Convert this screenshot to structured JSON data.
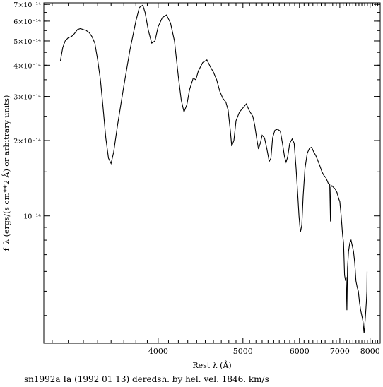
{
  "chart_data": {
    "type": "line",
    "xlabel": "Rest λ (Å)",
    "ylabel": "f_λ (ergs/(s cm**2 Å) or arbitrary units)",
    "caption": "sn1992a Ia (1992 01 13) deredsh. by hel. vel.  1846. km/s",
    "x_scale": "reciprocal",
    "y_scale": "log",
    "xlim": [
      3150,
      8400
    ],
    "ylim": [
      3.1e-15,
      7.1e-14
    ],
    "x_major_ticks": [
      {
        "value": 4000,
        "label": "4000"
      },
      {
        "value": 5000,
        "label": "5000"
      },
      {
        "value": 6000,
        "label": "6000"
      },
      {
        "value": 7000,
        "label": "7000"
      },
      {
        "value": 8000,
        "label": "8000"
      }
    ],
    "y_major_ticks": [
      {
        "value": 1e-14,
        "mantissa": "",
        "exponent": "10⁻¹⁴"
      },
      {
        "value": 2e-14,
        "mantissa": "2",
        "exponent": "10⁻¹⁴"
      },
      {
        "value": 3e-14,
        "mantissa": "3",
        "exponent": "10⁻¹⁴"
      },
      {
        "value": 4e-14,
        "mantissa": "4",
        "exponent": "10⁻¹⁴"
      },
      {
        "value": 5e-14,
        "mantissa": "5",
        "exponent": "10⁻¹⁴"
      },
      {
        "value": 6e-14,
        "mantissa": "6",
        "exponent": "10⁻¹⁴"
      },
      {
        "value": 7e-14,
        "mantissa": "7",
        "exponent": "10⁻¹⁴"
      }
    ],
    "grid": false,
    "line_color": "#000000",
    "series": [
      {
        "points": [
          [
            3250,
            4.15e-14
          ],
          [
            3265,
            4.7e-14
          ],
          [
            3280,
            5e-14
          ],
          [
            3300,
            5.15e-14
          ],
          [
            3320,
            5.2e-14
          ],
          [
            3340,
            5.35e-14
          ],
          [
            3360,
            5.55e-14
          ],
          [
            3380,
            5.6e-14
          ],
          [
            3400,
            5.55e-14
          ],
          [
            3420,
            5.5e-14
          ],
          [
            3440,
            5.4e-14
          ],
          [
            3460,
            5.2e-14
          ],
          [
            3480,
            4.9e-14
          ],
          [
            3500,
            4.2e-14
          ],
          [
            3520,
            3.5e-14
          ],
          [
            3540,
            2.7e-14
          ],
          [
            3560,
            2.05e-14
          ],
          [
            3580,
            1.7e-14
          ],
          [
            3600,
            1.62e-14
          ],
          [
            3620,
            1.8e-14
          ],
          [
            3650,
            2.3e-14
          ],
          [
            3700,
            3.3e-14
          ],
          [
            3750,
            4.6e-14
          ],
          [
            3800,
            6e-14
          ],
          [
            3830,
            6.8e-14
          ],
          [
            3860,
            6.95e-14
          ],
          [
            3880,
            6.5e-14
          ],
          [
            3910,
            5.5e-14
          ],
          [
            3940,
            4.9e-14
          ],
          [
            3970,
            5e-14
          ],
          [
            4000,
            5.7e-14
          ],
          [
            4040,
            6.2e-14
          ],
          [
            4080,
            6.35e-14
          ],
          [
            4120,
            5.9e-14
          ],
          [
            4160,
            5e-14
          ],
          [
            4200,
            3.6e-14
          ],
          [
            4230,
            2.9e-14
          ],
          [
            4260,
            2.6e-14
          ],
          [
            4290,
            2.78e-14
          ],
          [
            4320,
            3.2e-14
          ],
          [
            4360,
            3.55e-14
          ],
          [
            4390,
            3.5e-14
          ],
          [
            4420,
            3.8e-14
          ],
          [
            4470,
            4.1e-14
          ],
          [
            4520,
            4.2e-14
          ],
          [
            4560,
            3.95e-14
          ],
          [
            4600,
            3.75e-14
          ],
          [
            4640,
            3.5e-14
          ],
          [
            4680,
            3.15e-14
          ],
          [
            4720,
            2.95e-14
          ],
          [
            4760,
            2.85e-14
          ],
          [
            4790,
            2.65e-14
          ],
          [
            4820,
            2.2e-14
          ],
          [
            4840,
            1.9e-14
          ],
          [
            4870,
            2e-14
          ],
          [
            4900,
            2.4e-14
          ],
          [
            4950,
            2.6e-14
          ],
          [
            5000,
            2.7e-14
          ],
          [
            5050,
            2.8e-14
          ],
          [
            5100,
            2.62e-14
          ],
          [
            5150,
            2.5e-14
          ],
          [
            5180,
            2.3e-14
          ],
          [
            5210,
            2.05e-14
          ],
          [
            5240,
            1.85e-14
          ],
          [
            5270,
            1.95e-14
          ],
          [
            5300,
            2.1e-14
          ],
          [
            5340,
            2.05e-14
          ],
          [
            5380,
            1.85e-14
          ],
          [
            5420,
            1.65e-14
          ],
          [
            5450,
            1.7e-14
          ],
          [
            5480,
            2.05e-14
          ],
          [
            5520,
            2.2e-14
          ],
          [
            5570,
            2.22e-14
          ],
          [
            5620,
            2.18e-14
          ],
          [
            5660,
            1.95e-14
          ],
          [
            5700,
            1.72e-14
          ],
          [
            5730,
            1.64e-14
          ],
          [
            5760,
            1.72e-14
          ],
          [
            5800,
            1.95e-14
          ],
          [
            5850,
            2.03e-14
          ],
          [
            5890,
            1.95e-14
          ],
          [
            5930,
            1.55e-14
          ],
          [
            5960,
            1.25e-14
          ],
          [
            5990,
            1e-14
          ],
          [
            6020,
            8.6e-15
          ],
          [
            6050,
            9.2e-15
          ],
          [
            6080,
            1.2e-14
          ],
          [
            6120,
            1.55e-14
          ],
          [
            6170,
            1.78e-14
          ],
          [
            6220,
            1.86e-14
          ],
          [
            6270,
            1.88e-14
          ],
          [
            6320,
            1.8e-14
          ],
          [
            6370,
            1.74e-14
          ],
          [
            6420,
            1.66e-14
          ],
          [
            6470,
            1.58e-14
          ],
          [
            6520,
            1.5e-14
          ],
          [
            6570,
            1.45e-14
          ],
          [
            6620,
            1.42e-14
          ],
          [
            6680,
            1.35e-14
          ],
          [
            6720,
            1.34e-14
          ],
          [
            6740,
            9.5e-15
          ],
          [
            6750,
            1.3e-14
          ],
          [
            6780,
            1.32e-14
          ],
          [
            6820,
            1.3e-14
          ],
          [
            6870,
            1.28e-14
          ],
          [
            6920,
            1.24e-14
          ],
          [
            6970,
            1.17e-14
          ],
          [
            7000,
            1.14e-14
          ],
          [
            7040,
            1e-14
          ],
          [
            7080,
            8.4e-15
          ],
          [
            7110,
            7.8e-15
          ],
          [
            7140,
            5.8e-15
          ],
          [
            7170,
            5.5e-15
          ],
          [
            7190,
            5.7e-15
          ],
          [
            7210,
            4.2e-15
          ],
          [
            7230,
            6.2e-15
          ],
          [
            7260,
            7.2e-15
          ],
          [
            7300,
            7.8e-15
          ],
          [
            7340,
            8e-15
          ],
          [
            7380,
            7.6e-15
          ],
          [
            7420,
            7.2e-15
          ],
          [
            7460,
            6.5e-15
          ],
          [
            7500,
            5.5e-15
          ],
          [
            7540,
            5.2e-15
          ],
          [
            7580,
            5e-15
          ],
          [
            7620,
            4.5e-15
          ],
          [
            7660,
            4.2e-15
          ],
          [
            7700,
            4e-15
          ],
          [
            7740,
            3.8e-15
          ],
          [
            7780,
            3.4e-15
          ],
          [
            7800,
            3.6e-15
          ],
          [
            7830,
            4e-15
          ],
          [
            7860,
            4.5e-15
          ],
          [
            7880,
            5e-15
          ],
          [
            7890,
            6e-15
          ]
        ]
      }
    ]
  }
}
